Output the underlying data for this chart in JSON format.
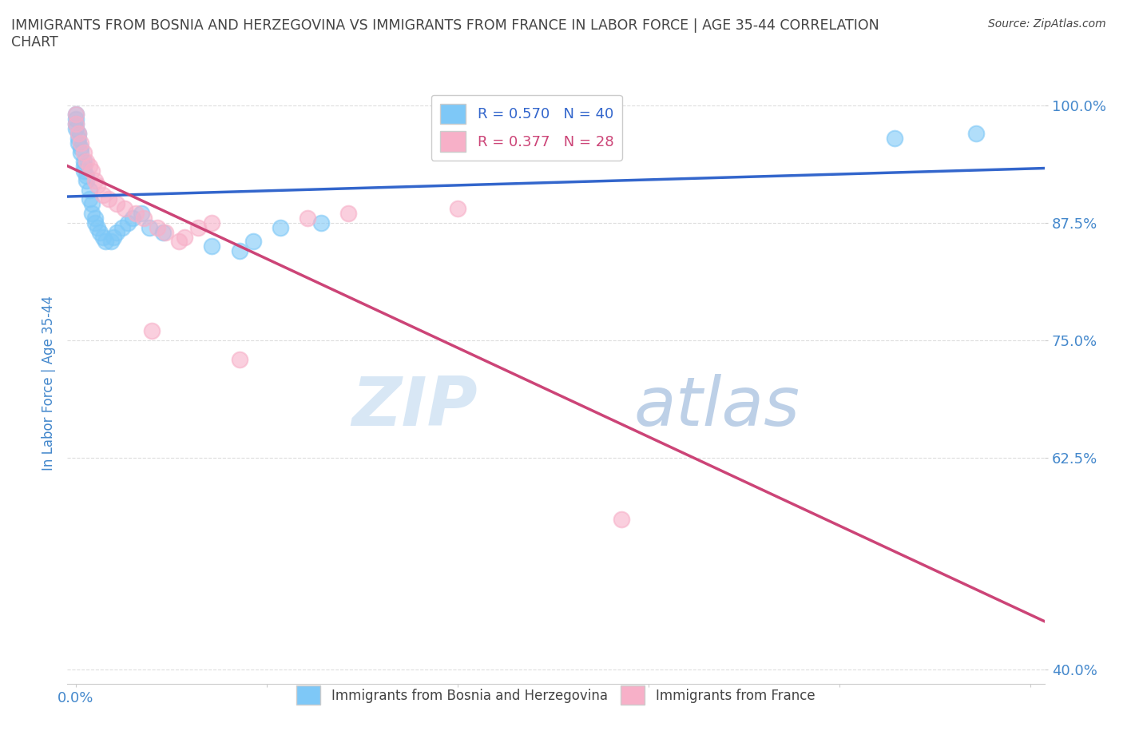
{
  "title": "IMMIGRANTS FROM BOSNIA AND HERZEGOVINA VS IMMIGRANTS FROM FRANCE IN LABOR FORCE | AGE 35-44 CORRELATION\nCHART",
  "source": "Source: ZipAtlas.com",
  "ylabel": "In Labor Force | Age 35-44",
  "xlim": [
    -0.003,
    0.355
  ],
  "ylim": [
    0.385,
    1.025
  ],
  "xticks": [
    0.0,
    0.07,
    0.14,
    0.21,
    0.28,
    0.35
  ],
  "xtick_labels": [
    "0.0%",
    "",
    "",
    "",
    "",
    ""
  ],
  "yticks": [
    0.4,
    0.625,
    0.75,
    0.875,
    1.0
  ],
  "ytick_labels": [
    "40.0%",
    "62.5%",
    "75.0%",
    "87.5%",
    "100.0%"
  ],
  "bosnia_x": [
    0.0,
    0.0,
    0.0,
    0.0,
    0.001,
    0.001,
    0.001,
    0.002,
    0.002,
    0.003,
    0.003,
    0.003,
    0.004,
    0.004,
    0.005,
    0.005,
    0.006,
    0.006,
    0.007,
    0.007,
    0.008,
    0.009,
    0.01,
    0.011,
    0.013,
    0.014,
    0.015,
    0.017,
    0.019,
    0.021,
    0.024,
    0.027,
    0.032,
    0.05,
    0.06,
    0.065,
    0.075,
    0.09,
    0.3,
    0.33
  ],
  "bosnia_y": [
    0.99,
    0.985,
    0.98,
    0.975,
    0.97,
    0.965,
    0.96,
    0.955,
    0.95,
    0.94,
    0.935,
    0.93,
    0.925,
    0.92,
    0.91,
    0.9,
    0.895,
    0.885,
    0.88,
    0.875,
    0.87,
    0.865,
    0.86,
    0.855,
    0.855,
    0.86,
    0.865,
    0.87,
    0.875,
    0.88,
    0.885,
    0.87,
    0.865,
    0.85,
    0.845,
    0.855,
    0.87,
    0.875,
    0.965,
    0.97
  ],
  "france_x": [
    0.0,
    0.0,
    0.001,
    0.002,
    0.003,
    0.004,
    0.005,
    0.006,
    0.007,
    0.008,
    0.01,
    0.012,
    0.015,
    0.018,
    0.022,
    0.025,
    0.028,
    0.03,
    0.033,
    0.038,
    0.04,
    0.045,
    0.05,
    0.06,
    0.085,
    0.1,
    0.14,
    0.2
  ],
  "france_y": [
    0.99,
    0.98,
    0.97,
    0.96,
    0.95,
    0.94,
    0.935,
    0.93,
    0.92,
    0.915,
    0.905,
    0.9,
    0.895,
    0.89,
    0.885,
    0.88,
    0.76,
    0.87,
    0.865,
    0.855,
    0.86,
    0.87,
    0.875,
    0.73,
    0.88,
    0.885,
    0.89,
    0.56
  ],
  "bosnia_color": "#7ec8f7",
  "france_color": "#f7b0c8",
  "bosnia_line_color": "#3366cc",
  "france_line_color": "#cc4477",
  "bosnia_r": 0.57,
  "bosnia_n": 40,
  "france_r": 0.377,
  "france_n": 28,
  "watermark_zip": "ZIP",
  "watermark_atlas": "atlas",
  "background_color": "#ffffff",
  "grid_color": "#dddddd",
  "title_color": "#444444",
  "axis_label_color": "#4488cc",
  "tick_label_color": "#4488cc"
}
